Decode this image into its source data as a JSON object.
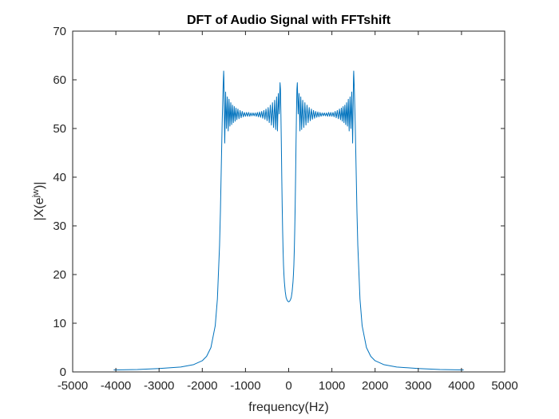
{
  "chart_data": {
    "type": "line",
    "title": "DFT of Audio Signal with FFTshift",
    "xlabel": "frequency(Hz)",
    "ylabel_parts": {
      "prefix": "|X(e",
      "superscript": "jw",
      "suffix": ")|"
    },
    "xlim": [
      -5000,
      5000
    ],
    "ylim": [
      0,
      70
    ],
    "xticks": [
      -5000,
      -4000,
      -3000,
      -2000,
      -1000,
      0,
      1000,
      2000,
      3000,
      4000,
      5000
    ],
    "yticks": [
      0,
      10,
      20,
      30,
      40,
      50,
      60,
      70
    ],
    "xtick_labels": [
      "-5000",
      "-4000",
      "-3000",
      "-2000",
      "-1000",
      "0",
      "1000",
      "2000",
      "3000",
      "4000",
      "5000"
    ],
    "ytick_labels": [
      "0",
      "10",
      "20",
      "30",
      "40",
      "50",
      "60",
      "70"
    ],
    "grid": false,
    "line_color": "#0072BD",
    "series": [
      {
        "x": [
          -4050,
          -4000,
          -3500,
          -3000,
          -2500,
          -2200,
          -2000,
          -1900,
          -1800,
          -1700,
          -1650,
          -1600,
          -1580,
          -1560,
          -1540,
          -1520,
          -1505,
          -1500,
          -1490,
          -1480,
          -1460,
          -1440,
          -1420,
          -1400,
          -1380,
          -1360,
          -1340,
          -1320,
          -1300,
          -1280,
          -1260,
          -1240,
          -1220,
          -1200,
          -1175,
          -1150,
          -1125,
          -1100,
          -1075,
          -1050,
          -1025,
          -1000,
          -975,
          -950,
          -925,
          -900,
          -875,
          -850,
          -825,
          -800,
          -775,
          -750,
          -725,
          -700,
          -675,
          -650,
          -625,
          -600,
          -575,
          -550,
          -525,
          -500,
          -475,
          -450,
          -425,
          -400,
          -375,
          -350,
          -325,
          -300,
          -280,
          -260,
          -240,
          -220,
          -200,
          -190,
          -180,
          -170,
          -160,
          -150,
          -140,
          -130,
          -120,
          -110,
          -100,
          -80,
          -60,
          -40,
          -20,
          0,
          20,
          40,
          60,
          80,
          100,
          110,
          120,
          130,
          140,
          150,
          160,
          170,
          180,
          190,
          200,
          220,
          240,
          260,
          280,
          300,
          325,
          350,
          375,
          400,
          425,
          450,
          475,
          500,
          525,
          550,
          575,
          600,
          625,
          650,
          675,
          700,
          725,
          750,
          775,
          800,
          825,
          850,
          875,
          900,
          925,
          950,
          975,
          1000,
          1025,
          1050,
          1075,
          1100,
          1125,
          1150,
          1175,
          1200,
          1220,
          1240,
          1260,
          1280,
          1300,
          1320,
          1340,
          1360,
          1380,
          1400,
          1420,
          1440,
          1460,
          1480,
          1490,
          1500,
          1505,
          1520,
          1540,
          1560,
          1580,
          1600,
          1650,
          1700,
          1800,
          1900,
          2000,
          2200,
          2500,
          3000,
          3500,
          4000,
          4050
        ],
        "y": [
          0.4,
          0.4,
          0.5,
          0.7,
          1.0,
          1.5,
          2.3,
          3.2,
          5.0,
          9.5,
          15.0,
          26.0,
          33.0,
          42.0,
          51.0,
          58.0,
          61.8,
          60.5,
          53.0,
          47.0,
          57.5,
          50.0,
          56.5,
          49.5,
          56.0,
          50.5,
          55.3,
          50.8,
          54.8,
          51.2,
          54.5,
          51.5,
          54.2,
          51.8,
          54.0,
          52.0,
          53.7,
          52.2,
          53.5,
          52.4,
          53.3,
          52.5,
          53.3,
          52.5,
          53.3,
          52.5,
          53.2,
          52.6,
          53.2,
          52.6,
          53.2,
          52.5,
          53.3,
          52.4,
          53.4,
          52.3,
          53.5,
          52.1,
          53.7,
          51.9,
          54.0,
          51.6,
          54.3,
          51.2,
          54.8,
          50.7,
          55.3,
          50.2,
          55.8,
          49.8,
          56.5,
          49.5,
          57.2,
          53.0,
          59.4,
          58.0,
          53.0,
          47.0,
          40.0,
          34.0,
          29.0,
          25.0,
          22.0,
          20.0,
          18.5,
          16.5,
          15.3,
          14.8,
          14.5,
          14.4,
          14.5,
          14.8,
          15.3,
          16.5,
          18.5,
          20.0,
          22.0,
          25.0,
          29.0,
          34.0,
          40.0,
          47.0,
          53.0,
          58.0,
          59.4,
          53.0,
          57.2,
          49.5,
          56.5,
          49.8,
          55.8,
          50.2,
          55.3,
          50.7,
          54.8,
          51.2,
          54.3,
          51.6,
          54.0,
          51.9,
          53.7,
          52.1,
          53.5,
          52.3,
          53.4,
          52.4,
          53.3,
          52.5,
          53.2,
          52.6,
          53.2,
          52.6,
          53.2,
          52.5,
          53.3,
          52.5,
          53.3,
          52.5,
          53.3,
          52.4,
          53.5,
          52.2,
          53.7,
          52.0,
          54.0,
          51.8,
          54.2,
          51.5,
          54.5,
          51.2,
          54.8,
          50.8,
          55.3,
          50.5,
          56.0,
          49.5,
          56.5,
          50.0,
          57.5,
          47.0,
          53.0,
          60.5,
          61.8,
          58.0,
          51.0,
          42.0,
          33.0,
          26.0,
          15.0,
          9.5,
          5.0,
          3.2,
          2.3,
          1.5,
          1.0,
          0.7,
          0.5,
          0.4,
          0.4
        ]
      }
    ]
  }
}
